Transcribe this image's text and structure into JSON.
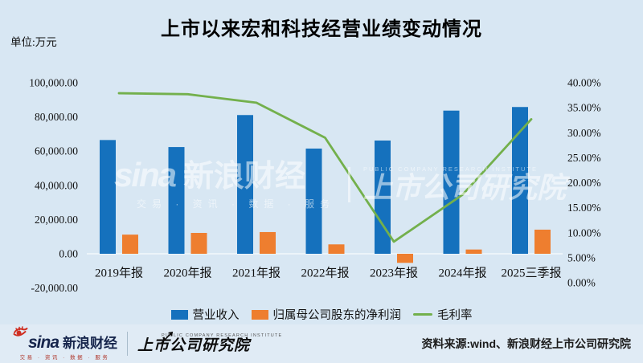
{
  "header": {
    "title": "上市以来宏和科技经营业绩变动情况",
    "unit_label": "单位:万元"
  },
  "chart_data": {
    "type": "bar",
    "subtype": "bar+line combo, dual axis",
    "title": "上市以来宏和科技经营业绩变动情况",
    "categories": [
      "2019年报",
      "2020年报",
      "2021年报",
      "2022年报",
      "2023年报",
      "2024年报",
      "2025三季报"
    ],
    "series": [
      {
        "name": "营业收入",
        "type": "bar",
        "axis": "left",
        "color": "#1571BD",
        "values": [
          66500,
          62400,
          81100,
          61500,
          66200,
          83700,
          85800
        ]
      },
      {
        "name": "归属母公司股东的净利润",
        "type": "bar",
        "axis": "left",
        "color": "#EE7E2F",
        "values": [
          11200,
          12200,
          12700,
          5500,
          -5300,
          2500,
          14100
        ]
      },
      {
        "name": "毛利率",
        "type": "line",
        "axis": "right",
        "color": "#73B04C",
        "values": [
          37.9,
          37.7,
          36.0,
          29.0,
          8.2,
          17.6,
          32.7
        ]
      }
    ],
    "left_axis": {
      "unit": "万元",
      "min": -20000,
      "max": 100000,
      "step": 20000,
      "tick_values": [
        100000,
        80000,
        60000,
        40000,
        20000,
        0,
        -20000
      ],
      "tick_labels": [
        "100,000.00",
        "80,000.00",
        "60,000.00",
        "40,000.00",
        "20,000.00",
        "0.00",
        "-20,000.00"
      ]
    },
    "right_axis": {
      "unit": "%",
      "min": 0,
      "max": 40,
      "step": 5,
      "tick_values": [
        40,
        35,
        30,
        25,
        20,
        15,
        10,
        5,
        0
      ],
      "tick_labels": [
        "40.00%",
        "35.00%",
        "30.00%",
        "25.00%",
        "20.00%",
        "15.00%",
        "10.00%",
        "5.00%",
        "0.00%"
      ]
    },
    "legend_position": "bottom",
    "grid": false,
    "background": "#D8E7F3"
  },
  "watermark": {
    "sina": "sina",
    "brand": "新浪财经",
    "tagline": "交易 · 资讯 · 数据 · 服务",
    "institute_caption": "PUBLIC COMPANY RESEARCH INSTITUTE",
    "institute": "上市公司研究院"
  },
  "footer": {
    "sina": "sina",
    "brand": "新浪财经",
    "tagline": "交易 · 资讯 · 数据 · 服务",
    "institute_caption": "PUBLIC COMPANY RESEARCH INSTITUTE",
    "institute": "上市公司研究院",
    "source": "资料来源:wind、新浪财经上市公司研究院"
  },
  "colors": {
    "background": "#D8E7F3",
    "footer_background": "#E0EBF5",
    "revenue_bar": "#1571BD",
    "profit_bar": "#EE7E2F",
    "margin_line": "#73B04C",
    "sina_navy": "#16254c",
    "sina_red": "#c0392b"
  }
}
